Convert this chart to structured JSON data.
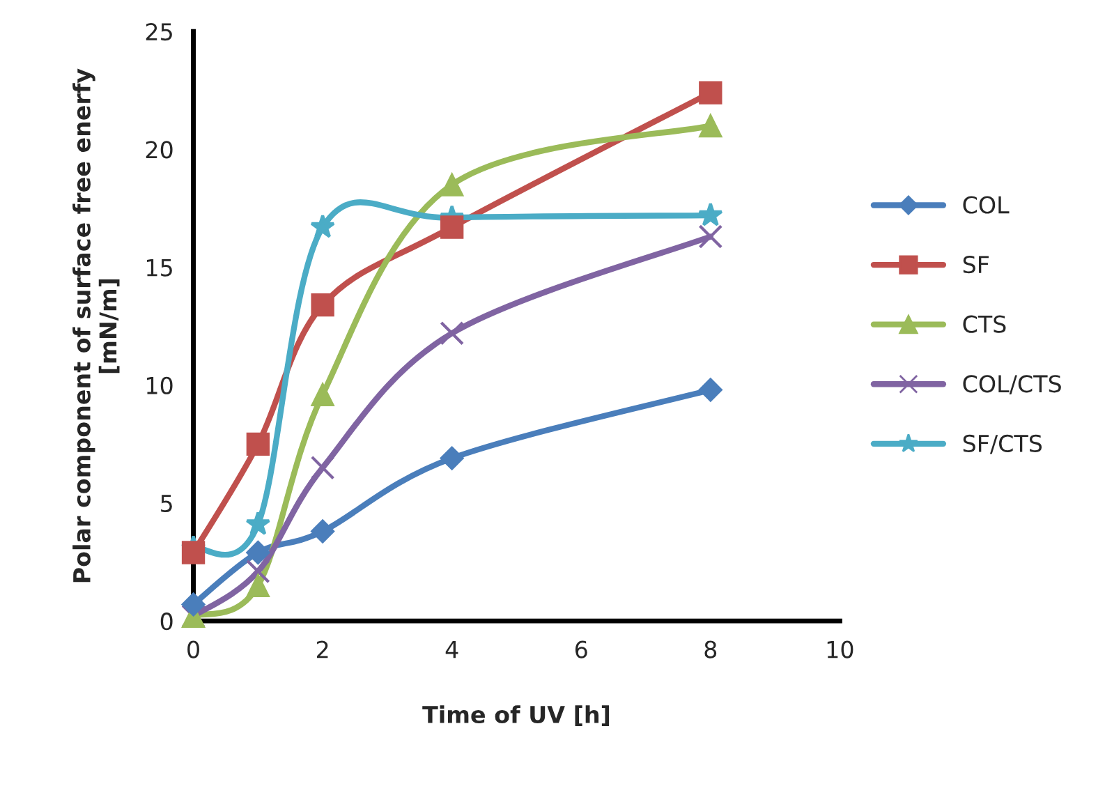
{
  "chart_data": {
    "type": "line",
    "xlabel": "Time of UV [h]",
    "ylabel": "Polar component of surface free enerfy\n[mN/m]",
    "x": [
      0,
      1,
      2,
      4,
      8
    ],
    "series": [
      {
        "name": "COL",
        "color": "#4a7ebb",
        "marker": "diamond",
        "values": [
          0.7,
          2.9,
          3.8,
          6.9,
          9.8
        ]
      },
      {
        "name": "SF",
        "color": "#c0504d",
        "marker": "square",
        "values": [
          2.9,
          7.5,
          13.4,
          16.7,
          22.4
        ]
      },
      {
        "name": "CTS",
        "color": "#9bbb59",
        "marker": "triangle",
        "values": [
          0.2,
          1.5,
          9.6,
          18.5,
          21.0
        ]
      },
      {
        "name": "COL/CTS",
        "color": "#8064a2",
        "marker": "cross",
        "values": [
          0.2,
          2.1,
          6.5,
          12.2,
          16.3
        ]
      },
      {
        "name": "SF/CTS",
        "color": "#4bacc6",
        "marker": "star",
        "values": [
          3.1,
          4.1,
          16.7,
          17.1,
          17.2
        ]
      }
    ],
    "xlim": [
      0,
      10
    ],
    "xticks": [
      0,
      2,
      4,
      6,
      8,
      10
    ],
    "ylim": [
      0,
      25
    ],
    "yticks": [
      0,
      5,
      10,
      15,
      20,
      25
    ],
    "grid": false,
    "legend": "right",
    "line_style": "solid"
  }
}
